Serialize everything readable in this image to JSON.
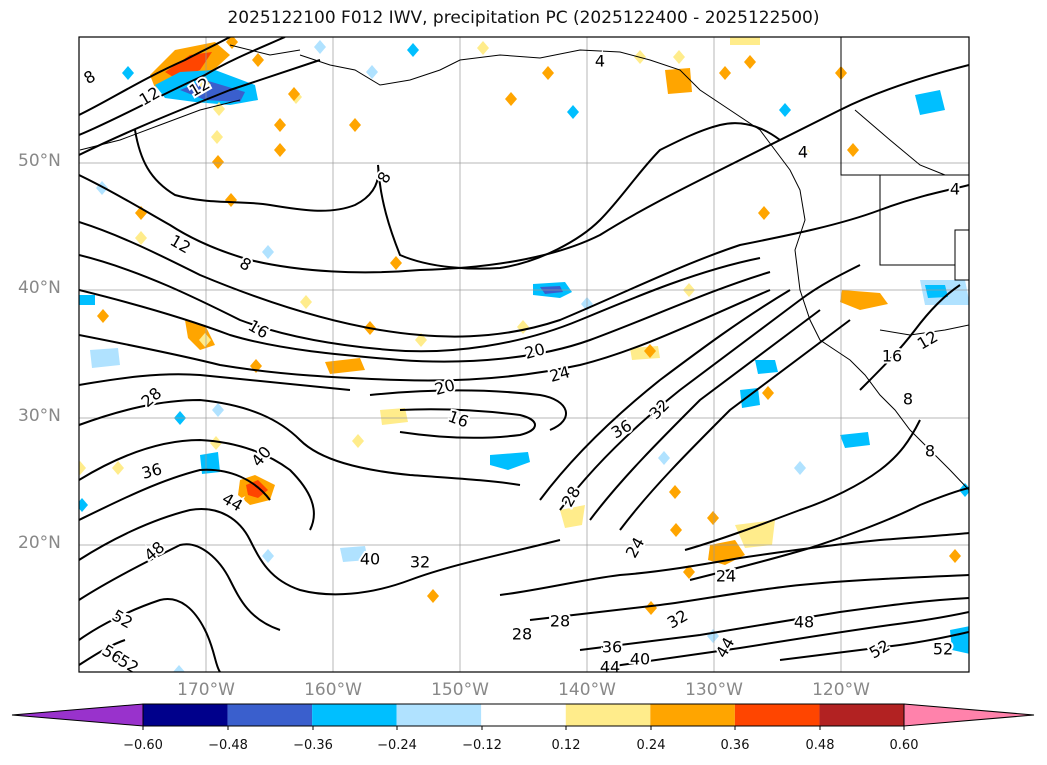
{
  "title": "2025122100 F012 IWV, precipitation PC (2025122400 - 2025122500)",
  "map": {
    "lat_labels": [
      "50°N",
      "40°N",
      "30°N",
      "20°N"
    ],
    "lon_labels": [
      "170°W",
      "160°W",
      "150°W",
      "140°W",
      "130°W",
      "120°W"
    ],
    "contour_labels": [
      "8",
      "12",
      "12",
      "4",
      "4",
      "4",
      "8",
      "12",
      "8",
      "16",
      "20",
      "24",
      "20",
      "16",
      "28",
      "36",
      "32",
      "36",
      "40",
      "44",
      "28",
      "24",
      "40",
      "32",
      "48",
      "52",
      "56",
      "52",
      "28",
      "28",
      "36",
      "44",
      "40",
      "32",
      "24",
      "48",
      "52",
      "44",
      "52",
      "16",
      "12",
      "8",
      "8"
    ]
  },
  "colorbar": {
    "ticks": [
      "−0.60",
      "−0.48",
      "−0.36",
      "−0.24",
      "−0.12",
      "0.12",
      "0.24",
      "0.36",
      "0.48",
      "0.60"
    ],
    "colors": [
      "#9932cc",
      "#00008b",
      "#3a5fcd",
      "#00bfff",
      "#b0e2ff",
      "#ffffff",
      "#ffec8b",
      "#ffa500",
      "#ff4500",
      "#b22222",
      "#ff82ab"
    ]
  }
}
